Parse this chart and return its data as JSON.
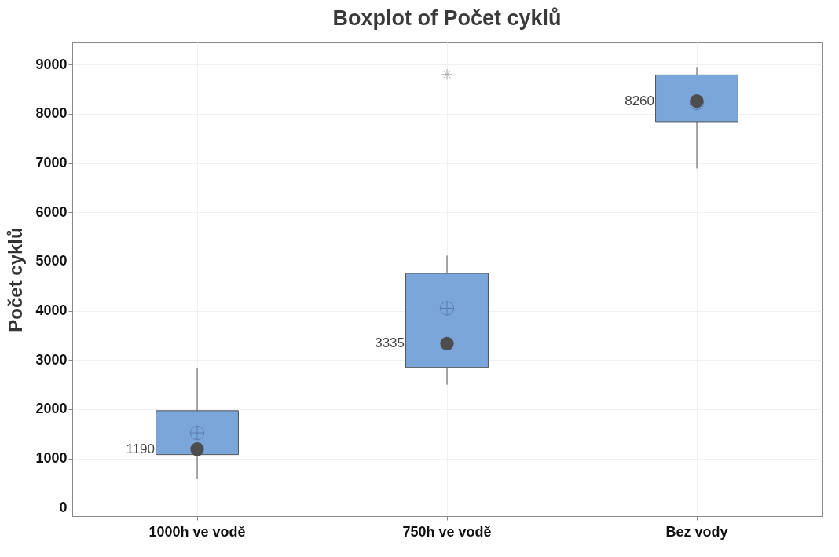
{
  "chart_data": {
    "type": "box",
    "title": "Boxplot of Počet cyklů",
    "ylabel": "Počet cyklů",
    "categories": [
      "1000h ve vodě",
      "750h ve vodě",
      "Bez vody"
    ],
    "color": "#7ba6d9",
    "boxes": [
      {
        "low": 580,
        "q1": 1080,
        "median": 1190,
        "q3": 1970,
        "high": 2830,
        "mean": 1520
      },
      {
        "low": 2500,
        "q1": 2850,
        "median": 3335,
        "q3": 4760,
        "high": 5120,
        "mean": 4050,
        "outliers": [
          8800
        ]
      },
      {
        "low": 6890,
        "q1": 7840,
        "median": 8260,
        "q3": 8790,
        "high": 8950,
        "mean": 8220
      }
    ],
    "annotations": [
      "1190",
      "3335",
      "8260"
    ],
    "ylim": [
      -170,
      9450
    ],
    "yticks": [
      0,
      1000,
      2000,
      3000,
      4000,
      5000,
      6000,
      7000,
      8000,
      9000
    ],
    "grid": true
  }
}
